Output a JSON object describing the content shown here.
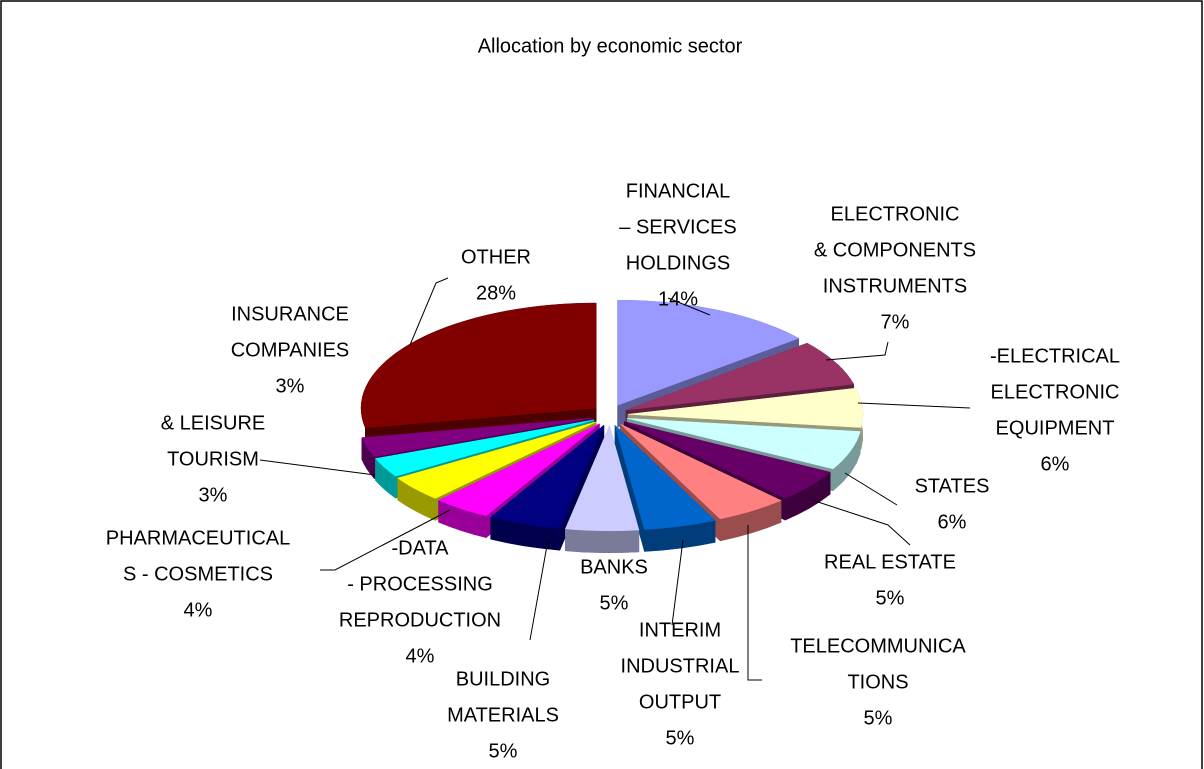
{
  "chart_data": {
    "type": "pie3d",
    "title": "Allocation by economic sector",
    "categories": [
      [
        "FINANCIAL",
        "– SERVICES",
        "HOLDINGS"
      ],
      [
        "ELECTRONIC",
        "& COMPONENTS",
        "INSTRUMENTS"
      ],
      [
        "-ELECTRICAL",
        "ELECTRONIC",
        "EQUIPMENT"
      ],
      [
        "STATES"
      ],
      [
        "REAL ESTATE"
      ],
      [
        "TELECOMMUNICA",
        "TIONS"
      ],
      [
        "INTERIM",
        "INDUSTRIAL",
        "OUTPUT"
      ],
      [
        "BANKS"
      ],
      [
        "BUILDING",
        "MATERIALS"
      ],
      [
        "-DATA",
        "- PROCESSING",
        "REPRODUCTION"
      ],
      [
        "PHARMACEUTICAL",
        "S - COSMETICS"
      ],
      [
        "& LEISURE",
        "TOURISM"
      ],
      [
        "INSURANCE",
        "COMPANIES"
      ],
      [
        "OTHER"
      ]
    ],
    "values": [
      14,
      7,
      6,
      6,
      5,
      5,
      5,
      5,
      5,
      4,
      4,
      3,
      3,
      28
    ],
    "value_labels": [
      "14%",
      "7%",
      "6%",
      "6%",
      "5%",
      "5%",
      "5%",
      "5%",
      "5%",
      "4%",
      "4%",
      "3%",
      "3%",
      "28%"
    ],
    "colors": [
      "#9999ff",
      "#993366",
      "#ffffcc",
      "#ccffff",
      "#660066",
      "#ff8080",
      "#0066cc",
      "#ccccff",
      "#000080",
      "#ff00ff",
      "#ffff00",
      "#00ffff",
      "#800080",
      "#800000"
    ]
  }
}
